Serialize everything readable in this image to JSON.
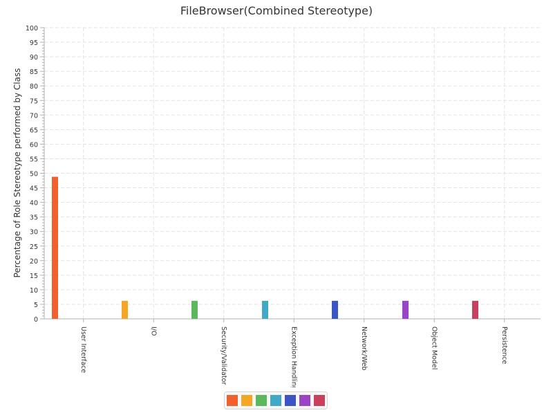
{
  "chart_data": {
    "type": "bar",
    "title": "FileBrowser(Combined Stereotype)",
    "xlabel": "",
    "ylabel": "Percentage of Role Stereotype performed by Class",
    "ylim": [
      0,
      100
    ],
    "ytick_step": 5,
    "yticks": [
      "0",
      "5",
      "10",
      "15",
      "20",
      "25",
      "30",
      "35",
      "40",
      "45",
      "50",
      "55",
      "60",
      "65",
      "70",
      "75",
      "80",
      "85",
      "90",
      "95",
      "100"
    ],
    "grid": true,
    "legend_position": "bottom",
    "categories": [
      "User Interface",
      "I/O",
      "Security/Validator",
      "Exception Handling",
      "Network/Web",
      "Object Model",
      "Persistence"
    ],
    "values": [
      48.8,
      6.2,
      6.2,
      6.2,
      6.2,
      6.2,
      6.2
    ],
    "colors": [
      "#f0612f",
      "#f5a623",
      "#5cb85c",
      "#41a8c9",
      "#3d55c4",
      "#9b44c8",
      "#c9405f"
    ]
  }
}
